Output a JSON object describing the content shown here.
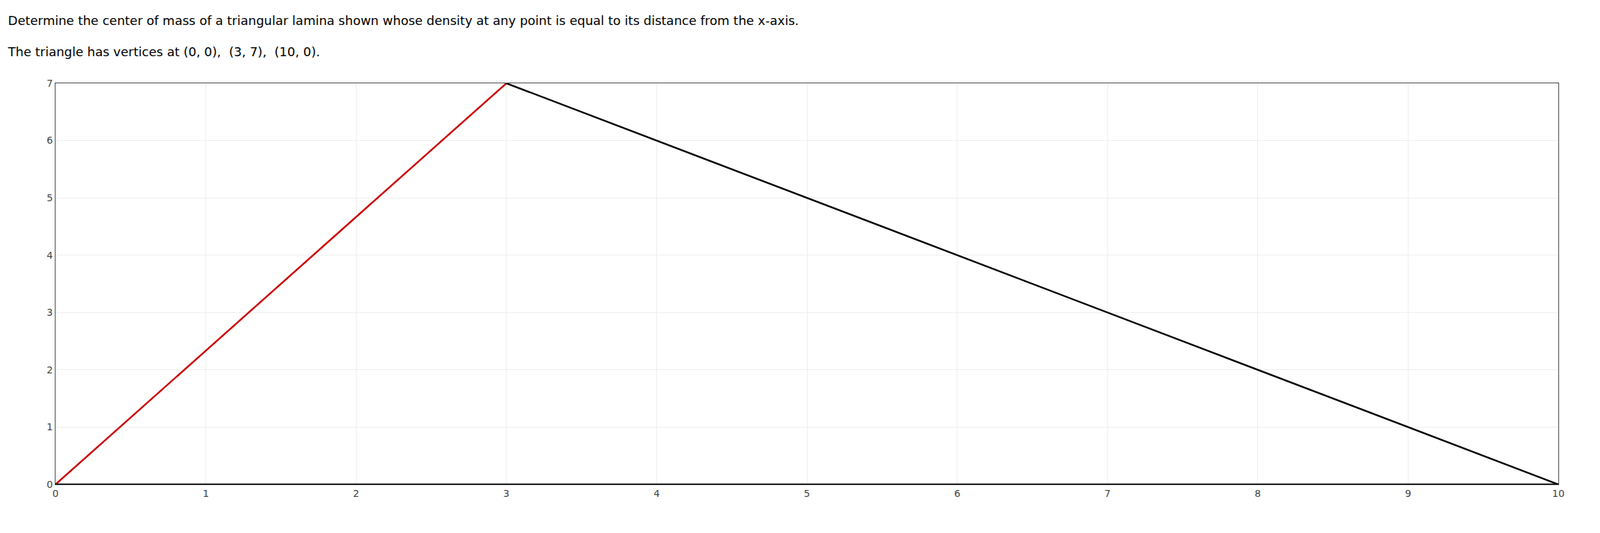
{
  "chart_data": {
    "type": "line",
    "title": "Determine the center of mass of a triangular lamina shown whose density at any point is equal to its distance from the x-axis.",
    "subtitle": "The triangle has vertices at (0, 0),  (3, 7),  (10, 0).",
    "series": [
      {
        "color": "#cc0000",
        "x": [
          0,
          3
        ],
        "values": [
          0,
          7
        ]
      },
      {
        "color": "#000000",
        "x": [
          3,
          10
        ],
        "values": [
          7,
          0
        ]
      },
      {
        "color": "#000000",
        "x": [
          0,
          10
        ],
        "values": [
          0,
          0
        ]
      }
    ],
    "xlim": [
      0,
      10
    ],
    "ylim": [
      0,
      7
    ],
    "xticks": [
      0,
      1,
      2,
      3,
      4,
      5,
      6,
      7,
      8,
      9,
      10
    ],
    "yticks": [
      0,
      1,
      2,
      3,
      4,
      5,
      6,
      7
    ],
    "grid": true
  }
}
